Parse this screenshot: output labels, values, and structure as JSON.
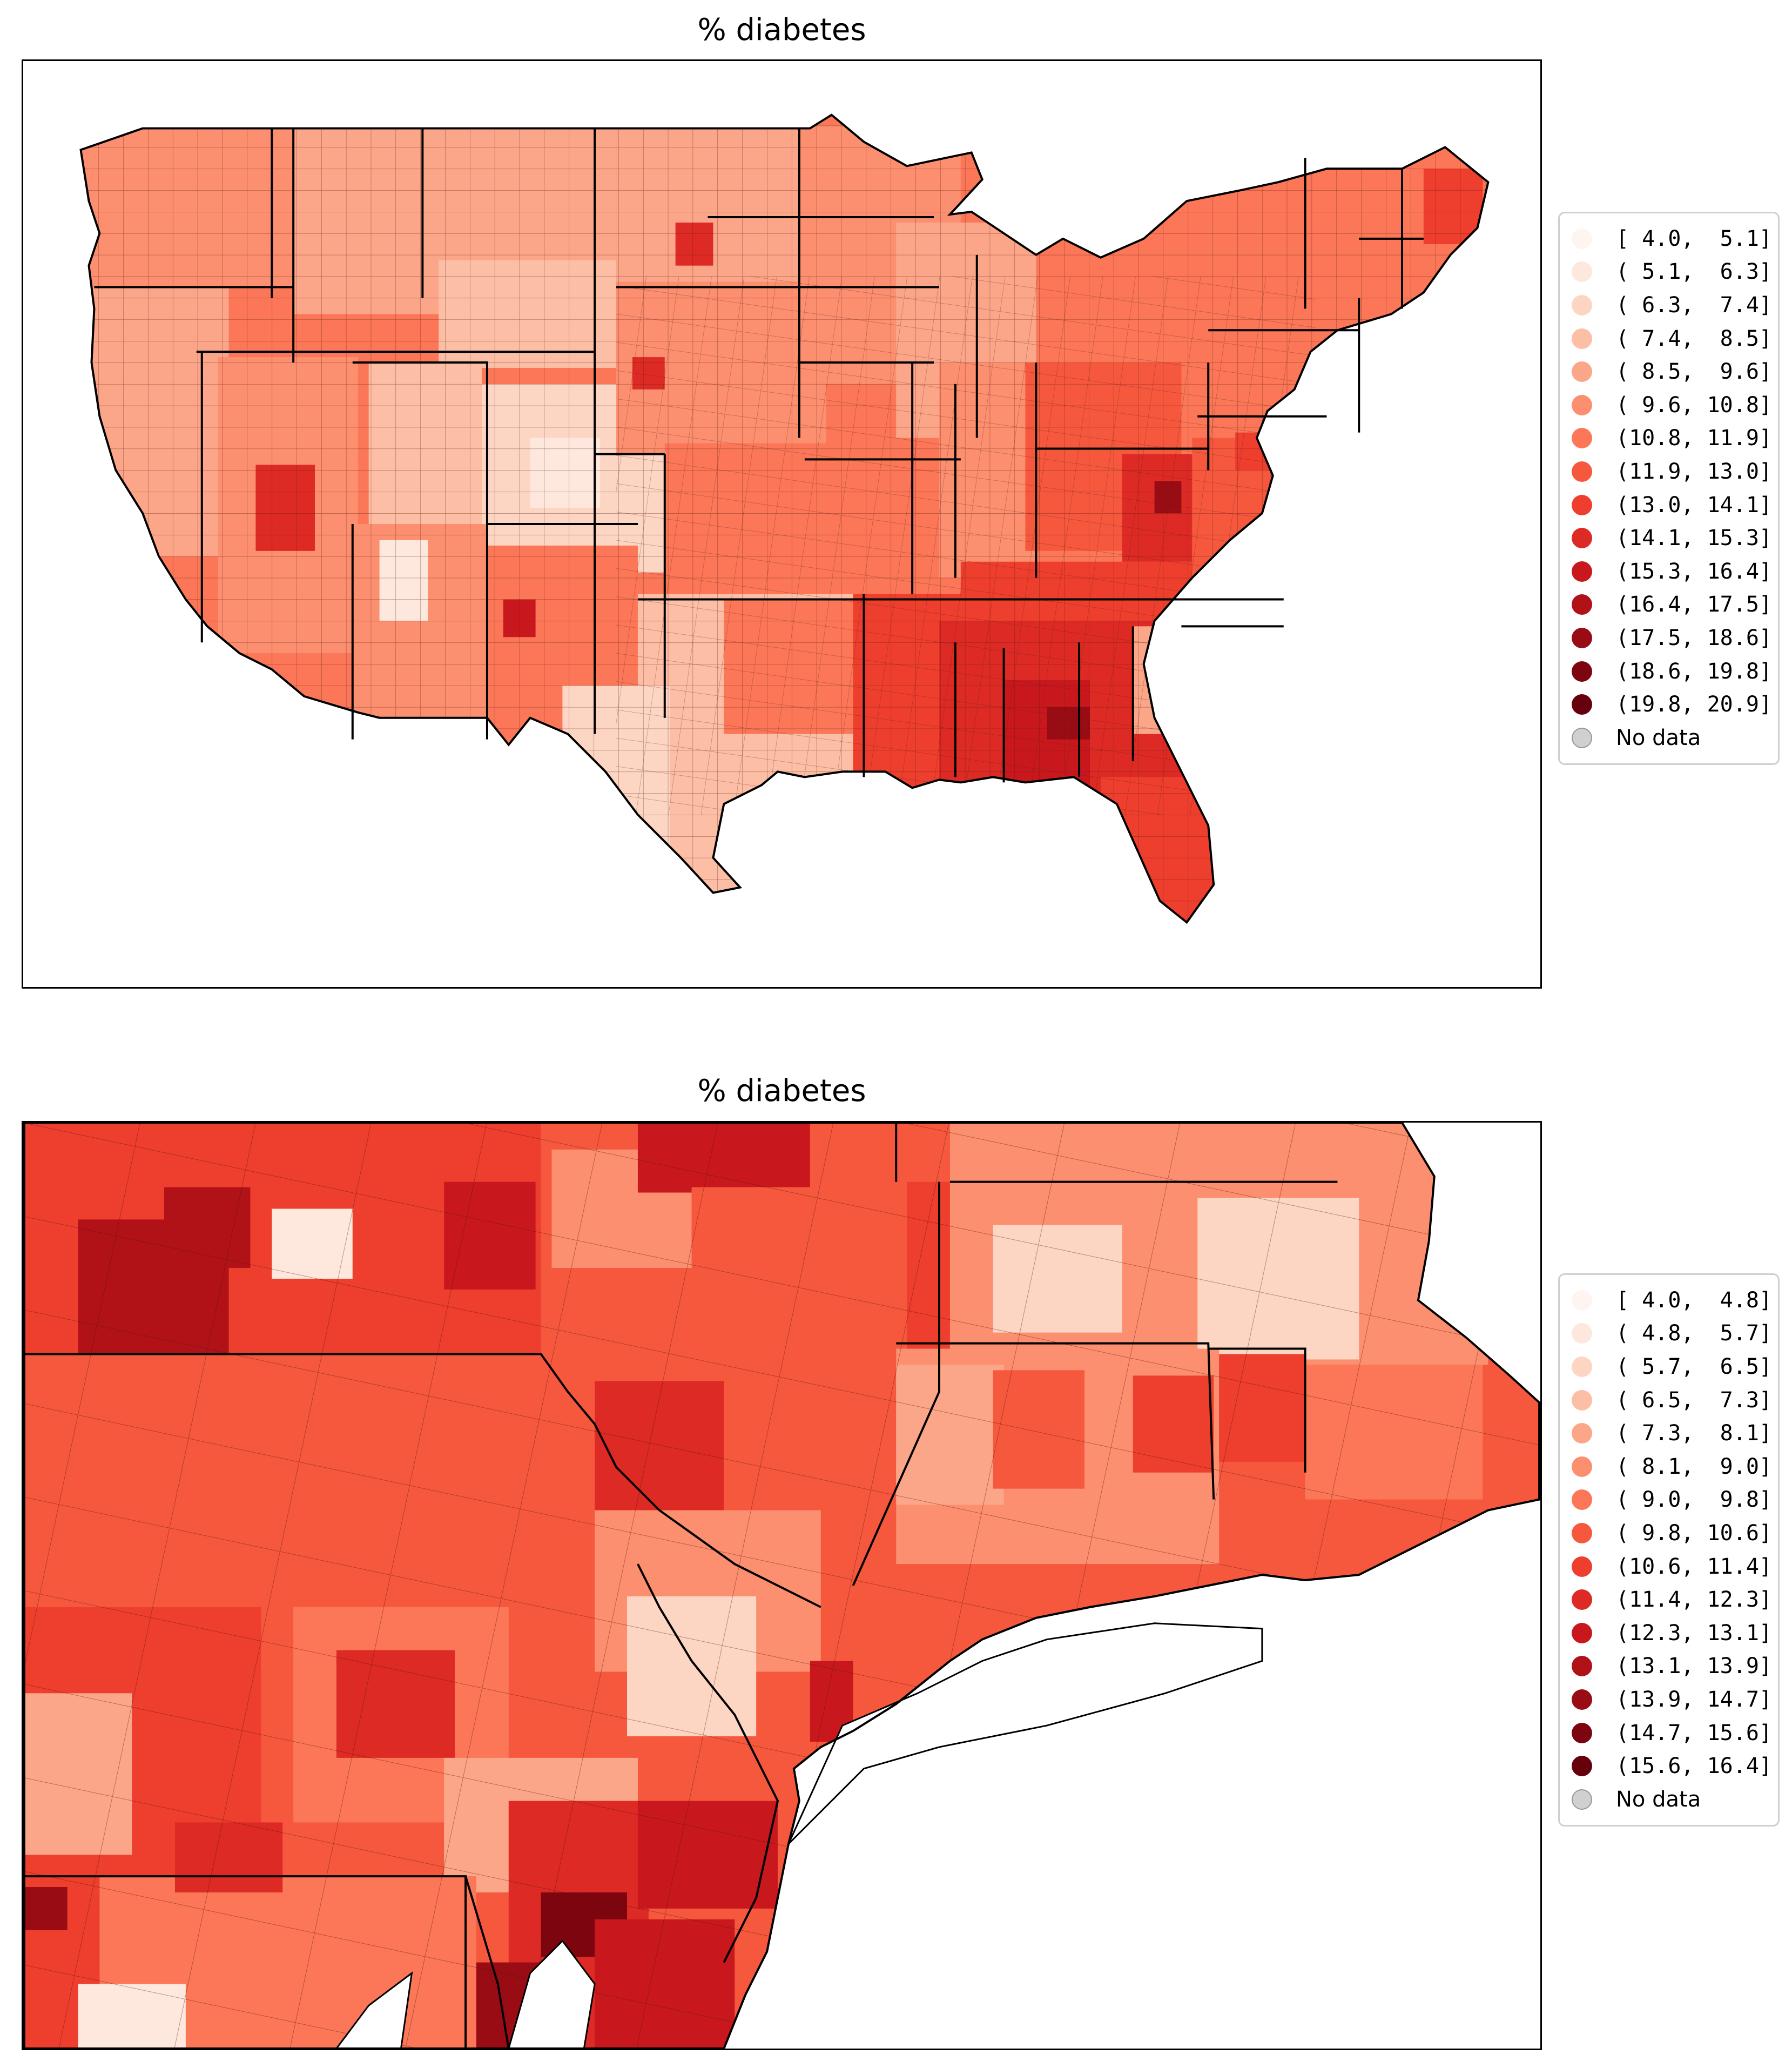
{
  "panels": [
    {
      "title": "% diabetes",
      "region": "Contiguous United States (county level)",
      "legend": [
        {
          "label": "[ 4.0,  5.1]",
          "color": "#fff5f0"
        },
        {
          "label": "( 5.1,  6.3]",
          "color": "#fee7dc"
        },
        {
          "label": "( 6.3,  7.4]",
          "color": "#fdd5c3"
        },
        {
          "label": "( 7.4,  8.5]",
          "color": "#fcbea5"
        },
        {
          "label": "( 8.5,  9.6]",
          "color": "#fca689"
        },
        {
          "label": "( 9.6, 10.8]",
          "color": "#fc8f6f"
        },
        {
          "label": "(10.8, 11.9]",
          "color": "#fb7758"
        },
        {
          "label": "(11.9, 13.0]",
          "color": "#f6583e"
        },
        {
          "label": "(13.0, 14.1]",
          "color": "#ee3e2e"
        },
        {
          "label": "(14.1, 15.3]",
          "color": "#dd2a25"
        },
        {
          "label": "(15.3, 16.4]",
          "color": "#c9181d"
        },
        {
          "label": "(16.4, 17.5]",
          "color": "#b11218"
        },
        {
          "label": "(17.5, 18.6]",
          "color": "#990c14"
        },
        {
          "label": "(18.6, 19.8]",
          "color": "#7d0510"
        },
        {
          "label": "(19.8, 20.9]",
          "color": "#67000d"
        },
        {
          "label": "No data",
          "color": "#d0d0d0"
        }
      ]
    },
    {
      "title": "% diabetes",
      "region": "Northeastern US (NY, NJ, PA, CT, MA, RI)",
      "legend": [
        {
          "label": "[ 4.0,  4.8]",
          "color": "#fff5f0"
        },
        {
          "label": "( 4.8,  5.7]",
          "color": "#fee7dc"
        },
        {
          "label": "( 5.7,  6.5]",
          "color": "#fdd5c3"
        },
        {
          "label": "( 6.5,  7.3]",
          "color": "#fcbea5"
        },
        {
          "label": "( 7.3,  8.1]",
          "color": "#fca689"
        },
        {
          "label": "( 8.1,  9.0]",
          "color": "#fc8f6f"
        },
        {
          "label": "( 9.0,  9.8]",
          "color": "#fb7758"
        },
        {
          "label": "( 9.8, 10.6]",
          "color": "#f6583e"
        },
        {
          "label": "(10.6, 11.4]",
          "color": "#ee3e2e"
        },
        {
          "label": "(11.4, 12.3]",
          "color": "#dd2a25"
        },
        {
          "label": "(12.3, 13.1]",
          "color": "#c9181d"
        },
        {
          "label": "(13.1, 13.9]",
          "color": "#b11218"
        },
        {
          "label": "(13.9, 14.7]",
          "color": "#990c14"
        },
        {
          "label": "(14.7, 15.6]",
          "color": "#7d0510"
        },
        {
          "label": "(15.6, 16.4]",
          "color": "#67000d"
        },
        {
          "label": "No data",
          "color": "#d0d0d0"
        }
      ]
    }
  ]
}
